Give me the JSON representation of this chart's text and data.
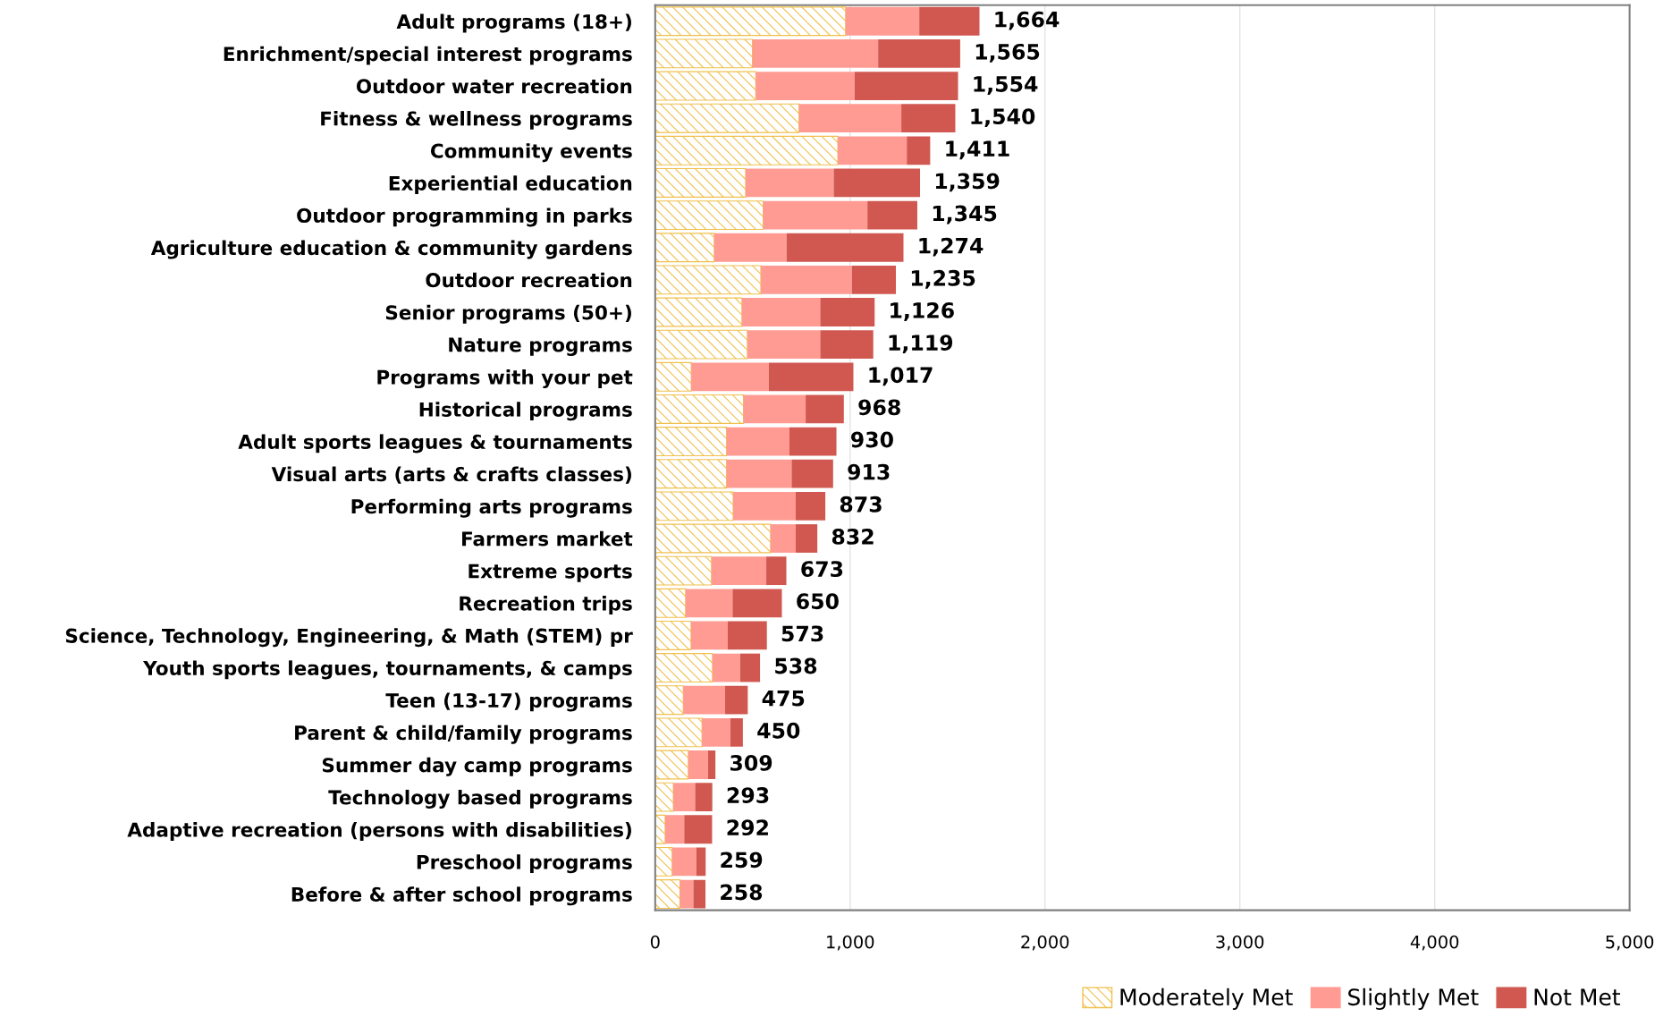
{
  "chart_data": {
    "type": "bar",
    "orientation": "horizontal",
    "stacked": true,
    "categories": [
      "Adult programs (18+)",
      "Enrichment/special interest programs",
      "Outdoor water recreation",
      "Fitness & wellness programs",
      "Community events",
      "Experiential education",
      "Outdoor programming in parks",
      "Agriculture education & community gardens",
      "Outdoor recreation",
      "Senior programs (50+)",
      "Nature programs",
      "Programs with your pet",
      "Historical programs",
      "Adult sports leagues & tournaments",
      "Visual arts (arts & crafts classes)",
      "Performing arts programs",
      "Farmers market",
      "Extreme sports",
      "Recreation trips",
      "Science, Technology, Engineering, & Math (STEM) pr",
      "Youth sports leagues, tournaments, & camps",
      "Teen (13-17) programs",
      "Parent & child/family programs",
      "Summer day camp programs",
      "Technology based programs",
      "Adaptive recreation (persons with disabilities)",
      "Preschool programs",
      "Before & after school programs"
    ],
    "series": [
      {
        "name": "Moderately Met",
        "color": "#f0c04c",
        "values": [
          977,
          499,
          516,
          738,
          937,
          464,
          554,
          303,
          542,
          445,
          473,
          185,
          453,
          366,
          366,
          400,
          592,
          289,
          156,
          184,
          294,
          144,
          240,
          170,
          93,
          51,
          87,
          127
        ]
      },
      {
        "name": "Slightly Met",
        "color": "#ff9b92",
        "values": [
          378,
          645,
          508,
          525,
          354,
          452,
          535,
          371,
          467,
          402,
          374,
          398,
          319,
          323,
          334,
          321,
          129,
          281,
          241,
          188,
          142,
          214,
          146,
          101,
          112,
          98,
          124,
          69
        ]
      },
      {
        "name": "Not Met",
        "color": "#d05850",
        "values": [
          309,
          421,
          530,
          277,
          120,
          443,
          256,
          600,
          226,
          279,
          272,
          434,
          196,
          241,
          213,
          152,
          111,
          103,
          253,
          201,
          102,
          117,
          64,
          38,
          88,
          143,
          48,
          62
        ]
      }
    ],
    "totals": [
      "1,664",
      "1,565",
      "1,554",
      "1,540",
      "1,411",
      "1,359",
      "1,345",
      "1,274",
      "1,235",
      "1,126",
      "1,119",
      "1,017",
      "968",
      "930",
      "913",
      "873",
      "832",
      "673",
      "650",
      "573",
      "538",
      "475",
      "450",
      "309",
      "293",
      "292",
      "259",
      "258"
    ],
    "xlim": [
      0,
      5000
    ],
    "xticks": [
      {
        "value": 0,
        "label": "0"
      },
      {
        "value": 1000,
        "label": "1,000"
      },
      {
        "value": 2000,
        "label": "2,000"
      },
      {
        "value": 3000,
        "label": "3,000"
      },
      {
        "value": 4000,
        "label": "4,000"
      },
      {
        "value": 5000,
        "label": "5,000"
      }
    ],
    "grid": "x",
    "legend": "bottom right"
  }
}
